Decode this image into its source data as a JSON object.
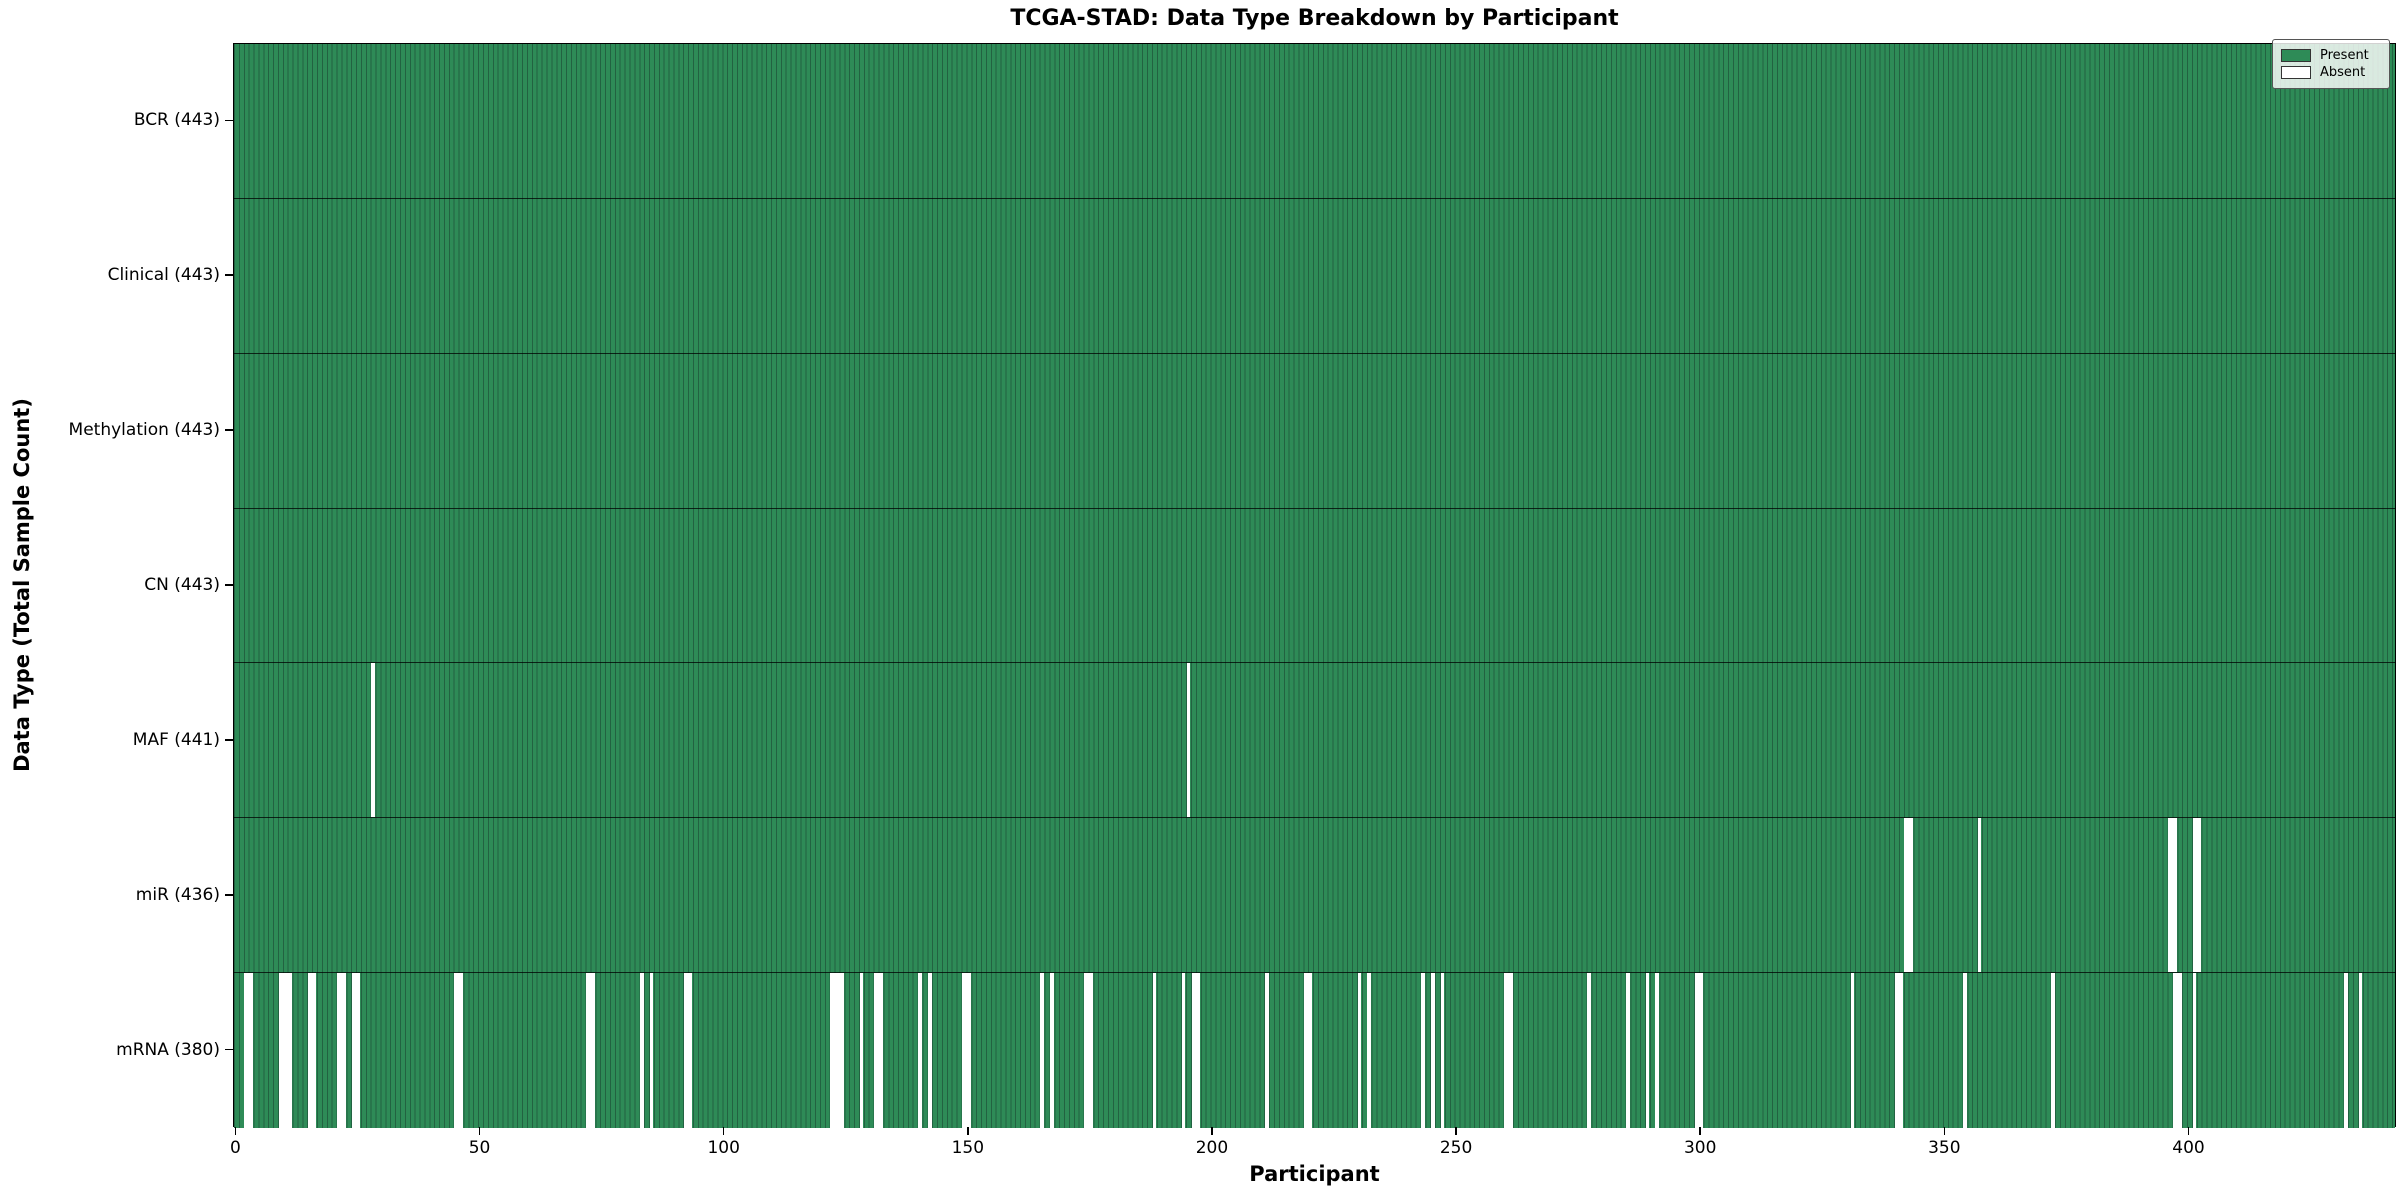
{
  "chart_data": {
    "type": "heatmap",
    "title": "TCGA-STAD: Data Type Breakdown by Participant",
    "xlabel": "Participant",
    "ylabel": "Data Type (Total Sample Count)",
    "n_participants": 443,
    "x_ticks": [
      0,
      50,
      100,
      150,
      200,
      250,
      300,
      350,
      400
    ],
    "legend_position": "upper right",
    "grid": false,
    "colors": {
      "present": "#2e8b57",
      "present_edge": "#226241",
      "absent": "#ffffff"
    },
    "legend_items": [
      {
        "label": "Present",
        "color": "#2e8b57"
      },
      {
        "label": "Absent",
        "color": "#ffffff"
      }
    ],
    "rows": [
      {
        "label": "BCR (443)",
        "data_type": "BCR",
        "total": 443,
        "absent": []
      },
      {
        "label": "Clinical (443)",
        "data_type": "Clinical",
        "total": 443,
        "absent": []
      },
      {
        "label": "Methylation (443)",
        "data_type": "Methylation",
        "total": 443,
        "absent": []
      },
      {
        "label": "CN (443)",
        "data_type": "CN",
        "total": 443,
        "absent": []
      },
      {
        "label": "MAF (441)",
        "data_type": "MAF",
        "total": 441,
        "absent": [
          28,
          195
        ]
      },
      {
        "label": "miR (436)",
        "data_type": "miR",
        "total": 436,
        "absent": [
          342,
          343,
          357,
          396,
          397,
          401,
          402
        ]
      },
      {
        "label": "mRNA (380)",
        "data_type": "mRNA",
        "total": 380,
        "absent": [
          2,
          3,
          9,
          10,
          11,
          15,
          16,
          21,
          22,
          24,
          25,
          45,
          46,
          72,
          73,
          83,
          85,
          92,
          93,
          122,
          123,
          124,
          128,
          131,
          132,
          140,
          142,
          149,
          150,
          165,
          167,
          174,
          175,
          188,
          194,
          196,
          197,
          211,
          219,
          220,
          230,
          232,
          243,
          245,
          247,
          260,
          261,
          277,
          285,
          289,
          291,
          299,
          300,
          331,
          340,
          341,
          354,
          372,
          397,
          398,
          401,
          432,
          435
        ]
      }
    ]
  }
}
